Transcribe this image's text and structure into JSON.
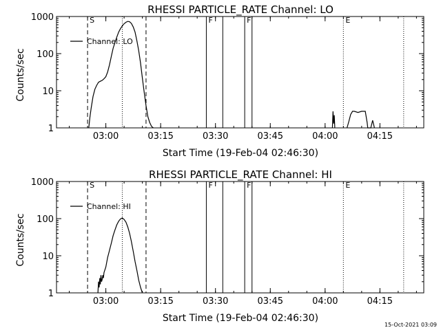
{
  "footer_timestamp": "15-Oct-2021 03:09",
  "chart_data": [
    {
      "type": "line",
      "title": "RHESSI PARTICLE_RATE Channel: LO",
      "xlabel": "Start Time (19-Feb-04 02:46:30)",
      "ylabel": "Counts/sec",
      "y_scale": "log",
      "ylim": [
        1,
        1000
      ],
      "xlim": [
        "02:46:30",
        "04:27:00"
      ],
      "x_ticks": [
        "03:00",
        "03:15",
        "03:30",
        "03:45",
        "04:00",
        "04:15"
      ],
      "y_ticks": [
        "1",
        "10",
        "100",
        "1000"
      ],
      "legend": {
        "entries": [
          "Channel: LO"
        ],
        "placement": "top-left"
      },
      "grid": false,
      "series": [
        {
          "name": "Channel: LO",
          "x": [
            "02:55:20",
            "02:55:40",
            "02:56:00",
            "02:56:30",
            "02:57:00",
            "02:57:30",
            "02:58:00",
            "02:58:30",
            "02:59:00",
            "02:59:30",
            "03:00:00",
            "03:00:30",
            "03:01:00",
            "03:01:30",
            "03:02:00",
            "03:02:30",
            "03:03:00",
            "03:03:30",
            "03:04:00",
            "03:04:30",
            "03:05:00",
            "03:05:30",
            "03:06:00",
            "03:06:30",
            "03:07:00",
            "03:07:30",
            "03:08:00",
            "03:08:30",
            "03:09:00",
            "03:09:30",
            "03:10:00",
            "03:10:30",
            "03:11:00",
            "03:11:30",
            "03:12:00",
            "03:12:30",
            "03:13:00"
          ],
          "y": [
            1,
            2,
            3.5,
            7,
            11,
            14,
            17,
            18,
            19,
            21,
            24,
            32,
            50,
            85,
            140,
            200,
            280,
            380,
            470,
            560,
            640,
            700,
            740,
            720,
            650,
            520,
            380,
            220,
            120,
            55,
            22,
            9,
            4,
            2,
            1.4,
            1.1,
            1
          ],
          "bursts": [
            {
              "x": [
                "04:02:00",
                "04:02:10",
                "04:02:20",
                "04:02:30",
                "04:02:40"
              ],
              "y": [
                1,
                2.8,
                1.3,
                2.2,
                1
              ]
            },
            {
              "x": [
                "04:06:00",
                "04:06:30",
                "04:07:00",
                "04:07:30",
                "04:08:00",
                "04:09:00",
                "04:10:00",
                "04:11:00",
                "04:11:30",
                "04:11:40",
                "04:12:30",
                "04:13:00",
                "04:13:30"
              ],
              "y": [
                1,
                1.5,
                2.3,
                2.8,
                2.8,
                2.6,
                2.8,
                2.8,
                1.4,
                1,
                1,
                1.6,
                1
              ]
            }
          ]
        }
      ],
      "markers": [
        {
          "label": "S",
          "x": "02:55:00",
          "style": "dashed"
        },
        {
          "label": "",
          "x": "03:04:30",
          "style": "dotted"
        },
        {
          "label": "",
          "x": "03:11:00",
          "style": "dashed"
        },
        {
          "label": "F",
          "x": "03:27:30",
          "style": "solid"
        },
        {
          "label": "",
          "x": "03:32:00",
          "style": "solid"
        },
        {
          "label": "F",
          "x": "03:38:00",
          "style": "solid"
        },
        {
          "label": "",
          "x": "03:40:00",
          "style": "solid"
        },
        {
          "label": "E",
          "x": "04:05:00",
          "style": "dotted"
        },
        {
          "label": "",
          "x": "04:21:30",
          "style": "dotted"
        }
      ]
    },
    {
      "type": "line",
      "title": "RHESSI PARTICLE_RATE Channel: HI",
      "xlabel": "Start Time (19-Feb-04 02:46:30)",
      "ylabel": "Counts/sec",
      "y_scale": "log",
      "ylim": [
        1,
        1000
      ],
      "xlim": [
        "02:46:30",
        "04:27:00"
      ],
      "x_ticks": [
        "03:00",
        "03:15",
        "03:30",
        "03:45",
        "04:00",
        "04:15"
      ],
      "y_ticks": [
        "1",
        "10",
        "100",
        "1000"
      ],
      "legend": {
        "entries": [
          "Channel: HI"
        ],
        "placement": "top-left"
      },
      "grid": false,
      "series": [
        {
          "name": "Channel: HI",
          "x": [
            "02:57:50",
            "02:58:00",
            "02:58:10",
            "02:58:20",
            "02:58:30",
            "02:58:40",
            "02:58:50",
            "02:59:00",
            "02:59:10",
            "02:59:20",
            "02:59:30",
            "03:00:00",
            "03:00:30",
            "03:01:00",
            "03:01:30",
            "03:02:00",
            "03:02:30",
            "03:03:00",
            "03:03:30",
            "03:04:00",
            "03:04:30",
            "03:05:00",
            "03:05:30",
            "03:06:00",
            "03:06:30",
            "03:07:00",
            "03:07:30",
            "03:08:00",
            "03:08:30",
            "03:09:00",
            "03:09:30",
            "03:10:00"
          ],
          "y": [
            1,
            2,
            1.4,
            2.5,
            1.7,
            3,
            2,
            2.3,
            3,
            2.5,
            3.5,
            5,
            9,
            14,
            22,
            35,
            50,
            68,
            85,
            98,
            104,
            95,
            80,
            60,
            40,
            24,
            13,
            7,
            4,
            2.2,
            1.4,
            1
          ],
          "bursts": []
        }
      ],
      "markers": [
        {
          "label": "S",
          "x": "02:55:00",
          "style": "dashed"
        },
        {
          "label": "",
          "x": "03:04:30",
          "style": "dotted"
        },
        {
          "label": "",
          "x": "03:11:00",
          "style": "dashed"
        },
        {
          "label": "F",
          "x": "03:27:30",
          "style": "solid"
        },
        {
          "label": "",
          "x": "03:32:00",
          "style": "solid"
        },
        {
          "label": "F",
          "x": "03:38:00",
          "style": "solid"
        },
        {
          "label": "",
          "x": "03:40:00",
          "style": "solid"
        },
        {
          "label": "E",
          "x": "04:05:00",
          "style": "dotted"
        },
        {
          "label": "",
          "x": "04:21:30",
          "style": "dotted"
        }
      ]
    }
  ]
}
